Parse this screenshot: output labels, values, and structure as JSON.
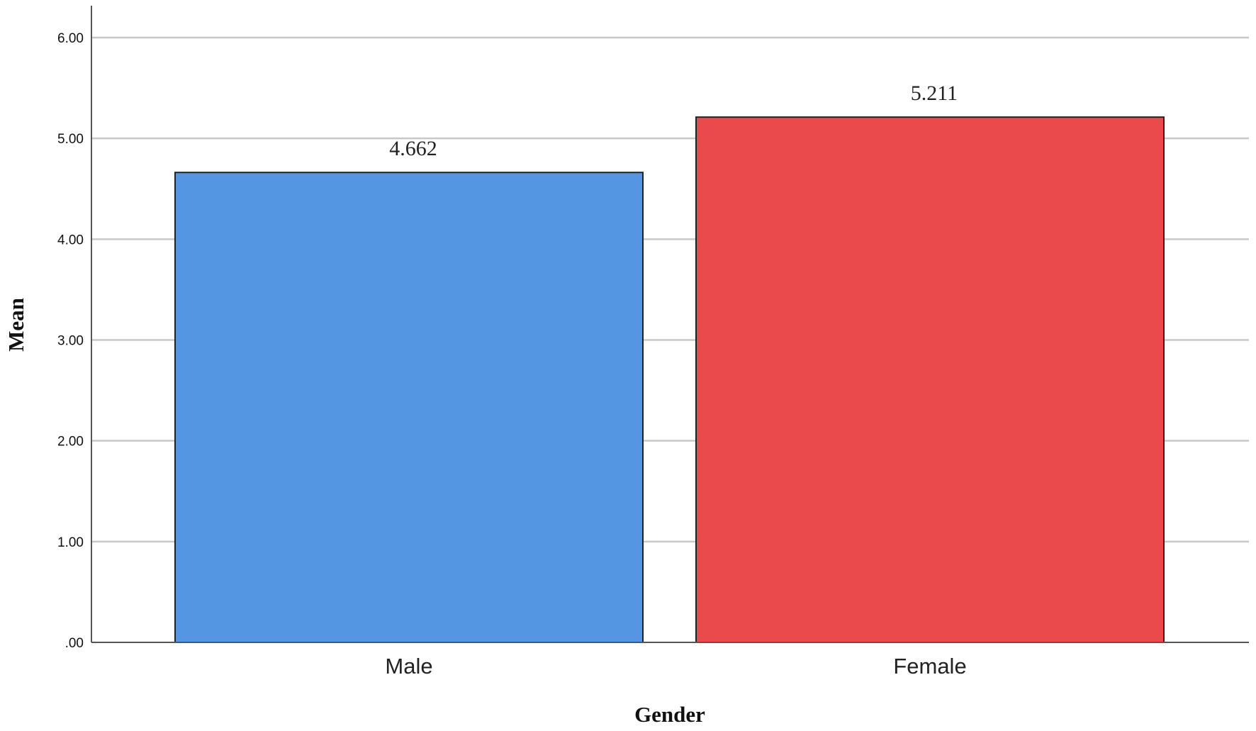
{
  "chart_data": {
    "type": "bar",
    "title": "",
    "xlabel": "Gender",
    "ylabel": "Mean",
    "categories": [
      "Male",
      "Female"
    ],
    "values": [
      4.662,
      5.211
    ],
    "value_labels": [
      "4.662",
      "5.211"
    ],
    "ylim": [
      0,
      6
    ],
    "yticks": [
      0,
      1,
      2,
      3,
      4,
      5,
      6
    ],
    "ytick_labels": [
      ".00",
      "1.00",
      "2.00",
      "3.00",
      "4.00",
      "5.00",
      "6.00"
    ],
    "grid": true,
    "bar_colors": [
      "#5596e3",
      "#ea4a4c"
    ],
    "grid_color": "#c8c8c8",
    "axis_color": "#555555",
    "bar_outline_color": "#222222",
    "legend": "none"
  }
}
